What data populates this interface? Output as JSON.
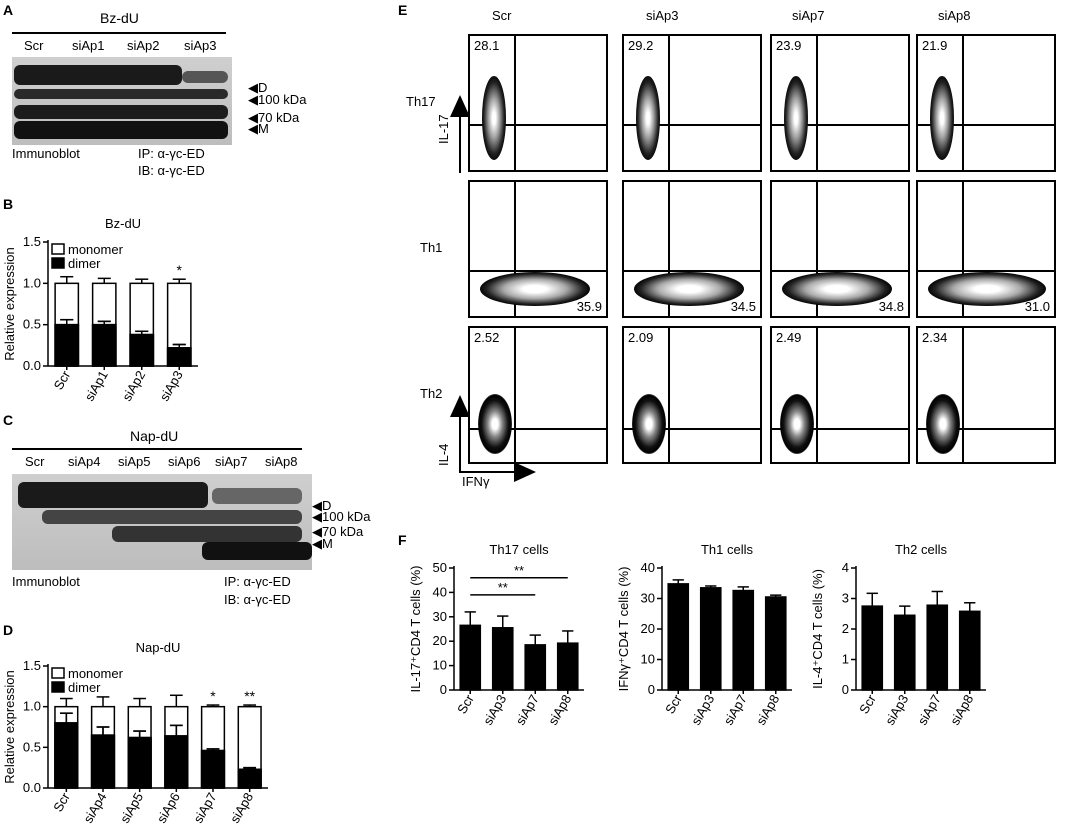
{
  "panels": {
    "A": "A",
    "B": "B",
    "C": "C",
    "D": "D",
    "E": "E",
    "F": "F"
  },
  "panelA": {
    "title": "Bz-dU",
    "lanes": [
      "Scr",
      "siAp1",
      "siAp2",
      "siAp3"
    ],
    "markers": [
      "D",
      "100 kDa",
      "70 kDa",
      "M"
    ],
    "footer_left": "Immunoblot",
    "ip": "IP: α-γc-ED",
    "ib": "IB: α-γc-ED"
  },
  "panelC": {
    "title": "Nap-dU",
    "lanes": [
      "Scr",
      "siAp4",
      "siAp5",
      "siAp6",
      "siAp7",
      "siAp8"
    ],
    "markers": [
      "D",
      "100 kDa",
      "70 kDa",
      "M"
    ],
    "footer_left": "Immunoblot",
    "ip": "IP: α-γc-ED",
    "ib": "IB: α-γc-ED"
  },
  "panelE": {
    "columns": [
      "Scr",
      "siAp3",
      "siAp7",
      "siAp8"
    ],
    "rows": [
      "Th17",
      "Th1",
      "Th2"
    ],
    "ylabels": {
      "Th17": "IL-17",
      "Th2": "IL-4"
    },
    "xlabel": "IFNγ",
    "values": {
      "Th17": [
        "28.1",
        "29.2",
        "23.9",
        "21.9"
      ],
      "Th1": [
        "35.9",
        "34.5",
        "34.8",
        "31.0"
      ],
      "Th2": [
        "2.52",
        "2.09",
        "2.49",
        "2.34"
      ]
    }
  },
  "chart_data": [
    {
      "type": "bar",
      "panel": "B",
      "title": "Bz-dU",
      "ylabel": "Relative expression",
      "categories": [
        "Scr",
        "siAp1",
        "siAp2",
        "siAp3"
      ],
      "ylim": [
        0,
        1.5
      ],
      "yticks": [
        "0.0",
        "0.5",
        "1.0",
        "1.5"
      ],
      "series": [
        {
          "name": "monomer",
          "values": [
            1.0,
            1.0,
            1.0,
            1.0
          ],
          "errors": [
            0.08,
            0.06,
            0.05,
            0.05
          ]
        },
        {
          "name": "dimer",
          "values": [
            0.5,
            0.5,
            0.38,
            0.22
          ],
          "errors": [
            0.06,
            0.04,
            0.04,
            0.04
          ]
        }
      ],
      "annotations": [
        "",
        "",
        "",
        "*"
      ]
    },
    {
      "type": "bar",
      "panel": "D",
      "title": "Nap-dU",
      "ylabel": "Relative expression",
      "categories": [
        "Scr",
        "siAp4",
        "siAp5",
        "siAp6",
        "siAp7",
        "siAp8"
      ],
      "ylim": [
        0,
        1.5
      ],
      "yticks": [
        "0.0",
        "0.5",
        "1.0",
        "1.5"
      ],
      "series": [
        {
          "name": "monomer",
          "values": [
            1.0,
            1.0,
            1.0,
            1.0,
            1.0,
            1.0
          ],
          "errors": [
            0.1,
            0.12,
            0.1,
            0.14,
            0.02,
            0.02
          ]
        },
        {
          "name": "dimer",
          "values": [
            0.8,
            0.65,
            0.62,
            0.64,
            0.46,
            0.23
          ],
          "errors": [
            0.12,
            0.1,
            0.08,
            0.13,
            0.02,
            0.02
          ]
        }
      ],
      "annotations": [
        "",
        "",
        "",
        "",
        "*",
        "**"
      ]
    },
    {
      "type": "bar",
      "panel": "F1",
      "title": "Th17 cells",
      "ylabel": "IL-17⁺CD4 T cells (%)",
      "categories": [
        "Scr",
        "siAp3",
        "siAp7",
        "siAp8"
      ],
      "ylim": [
        0,
        50
      ],
      "yticks": [
        "0",
        "10",
        "20",
        "30",
        "40",
        "50"
      ],
      "series": [
        {
          "values": [
            26.5,
            25.5,
            18.5,
            19.2
          ],
          "errors": [
            5.5,
            4.8,
            4.0,
            5.0
          ]
        }
      ],
      "annotations": [
        "**",
        "**"
      ]
    },
    {
      "type": "bar",
      "panel": "F2",
      "title": "Th1 cells",
      "ylabel": "IFNγ⁺CD4 T cells (%)",
      "categories": [
        "Scr",
        "siAp3",
        "siAp7",
        "siAp8"
      ],
      "ylim": [
        0,
        40
      ],
      "yticks": [
        "0",
        "10",
        "20",
        "30",
        "40"
      ],
      "series": [
        {
          "values": [
            34.8,
            33.5,
            32.6,
            30.5
          ],
          "errors": [
            1.3,
            0.6,
            1.2,
            0.6
          ]
        }
      ]
    },
    {
      "type": "bar",
      "panel": "F3",
      "title": "Th2 cells",
      "ylabel": "IL-4⁺CD4 T cells (%)",
      "categories": [
        "Scr",
        "siAp3",
        "siAp7",
        "siAp8"
      ],
      "ylim": [
        0,
        4
      ],
      "yticks": [
        "0",
        "1",
        "2",
        "3",
        "4"
      ],
      "series": [
        {
          "values": [
            2.75,
            2.45,
            2.78,
            2.58
          ],
          "errors": [
            0.42,
            0.3,
            0.45,
            0.28
          ]
        }
      ]
    }
  ]
}
